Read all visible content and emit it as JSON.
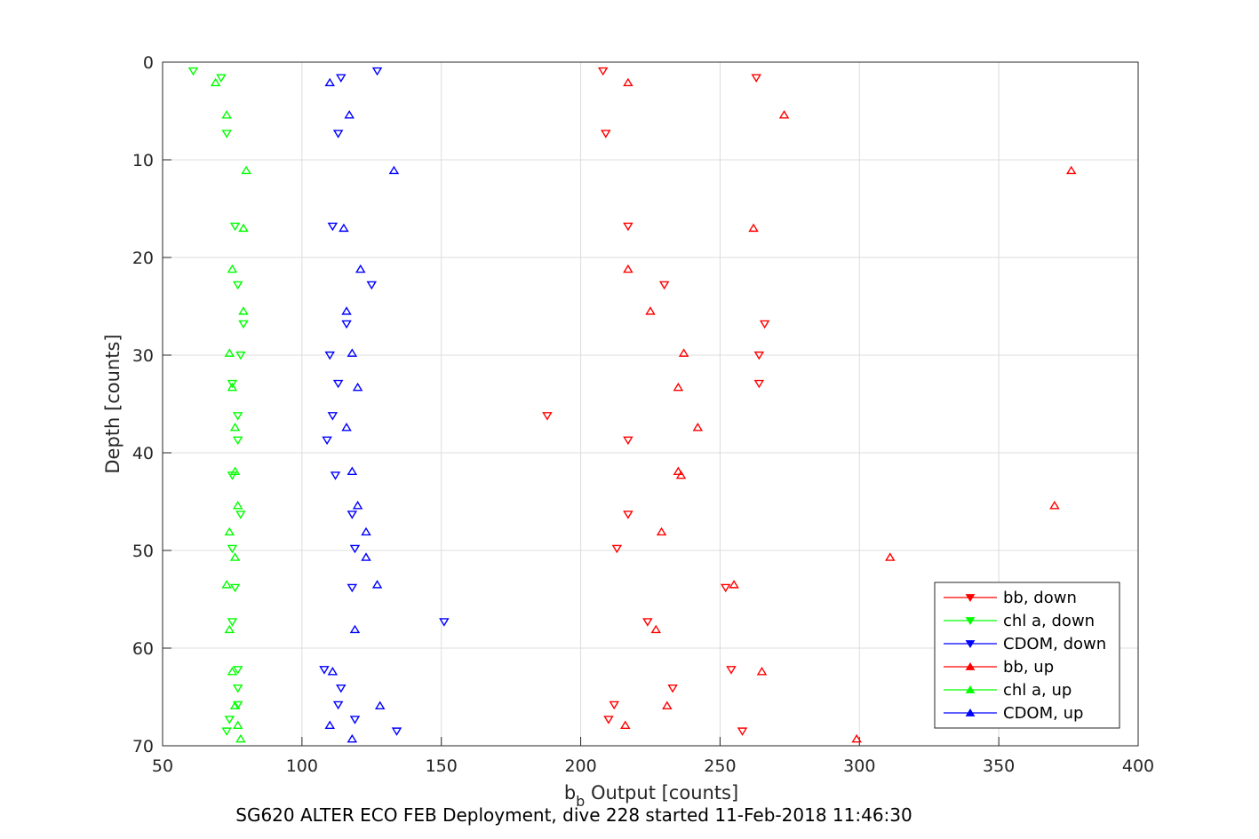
{
  "chart_data": {
    "type": "scatter",
    "xlabel_main": "b",
    "xlabel_sub": "b",
    "xlabel_rest": " Output [counts]",
    "ylabel": "Depth [counts]",
    "caption": "SG620 ALTER ECO FEB Deployment, dive 228 started 11-Feb-2018 11:46:30",
    "xlim": [
      50,
      400
    ],
    "ylim": [
      0,
      70
    ],
    "y_reversed": true,
    "grid": true,
    "legend_position": "bottom-right",
    "xticks": [
      50,
      100,
      150,
      200,
      250,
      300,
      350,
      400
    ],
    "yticks": [
      0,
      10,
      20,
      30,
      40,
      50,
      60,
      70
    ],
    "series": [
      {
        "name": "bb, down",
        "color": "#ff0000",
        "marker": "triangle-down",
        "points": [
          [
            208,
            0.9
          ],
          [
            263,
            1.6
          ],
          [
            209,
            7.3
          ],
          [
            217,
            16.8
          ],
          [
            230,
            22.8
          ],
          [
            266,
            26.8
          ],
          [
            264,
            30.0
          ],
          [
            264,
            32.9
          ],
          [
            188,
            36.2
          ],
          [
            217,
            38.7
          ],
          [
            217,
            46.3
          ],
          [
            213,
            49.8
          ],
          [
            252,
            53.8
          ],
          [
            224,
            57.3
          ],
          [
            254,
            62.2
          ],
          [
            233,
            64.1
          ],
          [
            212,
            65.8
          ],
          [
            210,
            67.3
          ],
          [
            258,
            68.5
          ]
        ]
      },
      {
        "name": "chl a, down",
        "color": "#00ff00",
        "marker": "triangle-down",
        "points": [
          [
            61,
            0.9
          ],
          [
            71,
            1.6
          ],
          [
            73,
            7.3
          ],
          [
            76,
            16.8
          ],
          [
            77,
            22.8
          ],
          [
            79,
            26.8
          ],
          [
            78,
            30.0
          ],
          [
            75,
            32.9
          ],
          [
            77,
            36.2
          ],
          [
            77,
            38.7
          ],
          [
            75,
            42.3
          ],
          [
            78,
            46.3
          ],
          [
            75,
            49.8
          ],
          [
            76,
            53.8
          ],
          [
            75,
            57.3
          ],
          [
            77,
            62.2
          ],
          [
            77,
            64.1
          ],
          [
            77,
            65.8
          ],
          [
            74,
            67.3
          ],
          [
            73,
            68.5
          ]
        ]
      },
      {
        "name": "CDOM, down",
        "color": "#0000ff",
        "marker": "triangle-down",
        "points": [
          [
            127,
            0.9
          ],
          [
            114,
            1.6
          ],
          [
            113,
            7.3
          ],
          [
            111,
            16.8
          ],
          [
            125,
            22.8
          ],
          [
            116,
            26.8
          ],
          [
            110,
            30.0
          ],
          [
            113,
            32.9
          ],
          [
            111,
            36.2
          ],
          [
            109,
            38.7
          ],
          [
            112,
            42.3
          ],
          [
            118,
            46.3
          ],
          [
            119,
            49.8
          ],
          [
            118,
            53.8
          ],
          [
            151,
            57.3
          ],
          [
            108,
            62.2
          ],
          [
            114,
            64.1
          ],
          [
            113,
            65.8
          ],
          [
            119,
            67.3
          ],
          [
            134,
            68.5
          ]
        ]
      },
      {
        "name": "bb, up",
        "color": "#ff0000",
        "marker": "triangle-up",
        "points": [
          [
            217,
            2.1
          ],
          [
            273,
            5.4
          ],
          [
            376,
            11.1
          ],
          [
            262,
            17.0
          ],
          [
            217,
            21.2
          ],
          [
            225,
            25.5
          ],
          [
            237,
            29.8
          ],
          [
            235,
            33.3
          ],
          [
            242,
            37.4
          ],
          [
            235,
            41.9
          ],
          [
            236,
            42.3
          ],
          [
            370,
            45.4
          ],
          [
            229,
            48.1
          ],
          [
            311,
            50.7
          ],
          [
            255,
            53.5
          ],
          [
            227,
            58.1
          ],
          [
            265,
            62.4
          ],
          [
            231,
            65.9
          ],
          [
            216,
            67.9
          ],
          [
            299,
            69.3
          ]
        ]
      },
      {
        "name": "chl a, up",
        "color": "#00ff00",
        "marker": "triangle-up",
        "points": [
          [
            69,
            2.1
          ],
          [
            73,
            5.4
          ],
          [
            80,
            11.1
          ],
          [
            79,
            17.0
          ],
          [
            75,
            21.2
          ],
          [
            79,
            25.5
          ],
          [
            74,
            29.8
          ],
          [
            75,
            33.3
          ],
          [
            76,
            37.4
          ],
          [
            76,
            41.9
          ],
          [
            77,
            45.4
          ],
          [
            74,
            48.1
          ],
          [
            76,
            50.7
          ],
          [
            73,
            53.5
          ],
          [
            74,
            58.1
          ],
          [
            75,
            62.4
          ],
          [
            76,
            65.9
          ],
          [
            77,
            67.9
          ],
          [
            78,
            69.3
          ]
        ]
      },
      {
        "name": "CDOM, up",
        "color": "#0000ff",
        "marker": "triangle-up",
        "points": [
          [
            110,
            2.1
          ],
          [
            117,
            5.4
          ],
          [
            133,
            11.1
          ],
          [
            115,
            17.0
          ],
          [
            121,
            21.2
          ],
          [
            116,
            25.5
          ],
          [
            118,
            29.8
          ],
          [
            120,
            33.3
          ],
          [
            116,
            37.4
          ],
          [
            118,
            41.9
          ],
          [
            120,
            45.4
          ],
          [
            123,
            48.1
          ],
          [
            123,
            50.7
          ],
          [
            127,
            53.5
          ],
          [
            119,
            58.1
          ],
          [
            111,
            62.4
          ],
          [
            128,
            65.9
          ],
          [
            110,
            67.9
          ],
          [
            118,
            69.3
          ]
        ]
      }
    ]
  }
}
